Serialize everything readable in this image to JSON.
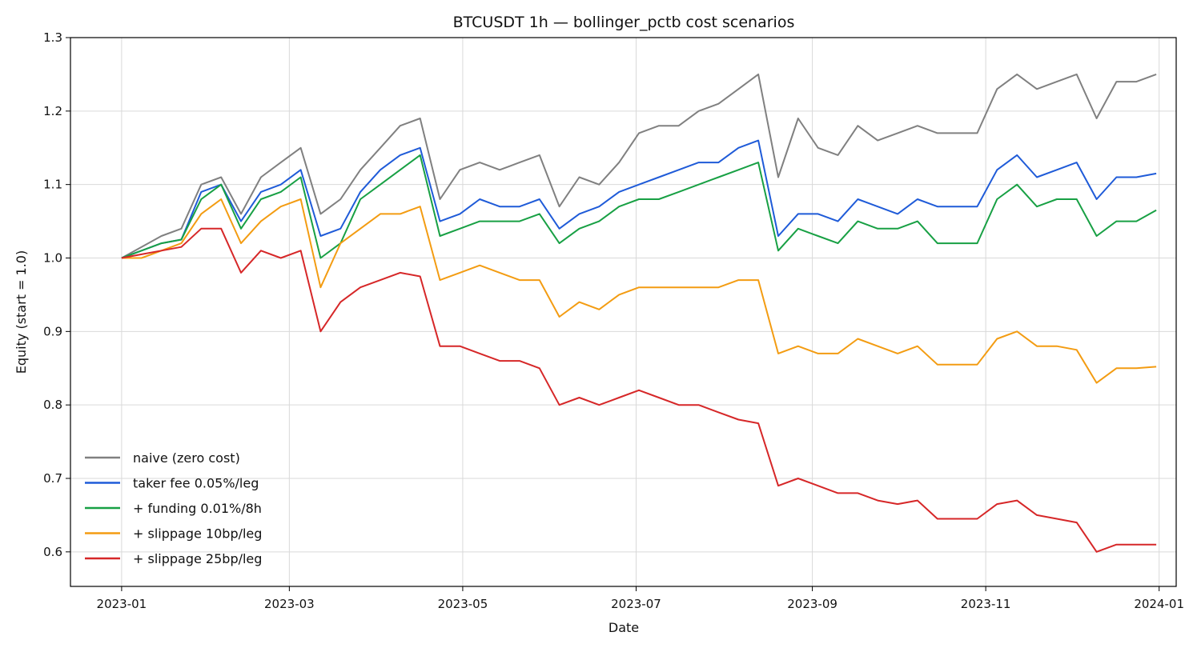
{
  "chart_data": {
    "type": "line",
    "title": "BTCUSDT 1h — bollinger_pctb cost scenarios",
    "xlabel": "Date",
    "ylabel": "Equity (start = 1.0)",
    "x_ticks": [
      "2023-01",
      "2023-03",
      "2023-05",
      "2023-07",
      "2023-09",
      "2023-11",
      "2024-01"
    ],
    "y_ticks": [
      "0.6",
      "0.7",
      "0.8",
      "0.9",
      "1.0",
      "1.1",
      "1.2",
      "1.3"
    ],
    "xlim": [
      "2022-12-14",
      "2024-01-07"
    ],
    "ylim": [
      0.553,
      1.3
    ],
    "grid": true,
    "legend_position": "lower-left",
    "x": [
      "2023-01-01",
      "2023-01-08",
      "2023-01-15",
      "2023-01-22",
      "2023-01-29",
      "2023-02-05",
      "2023-02-12",
      "2023-02-19",
      "2023-02-26",
      "2023-03-05",
      "2023-03-12",
      "2023-03-19",
      "2023-03-26",
      "2023-04-02",
      "2023-04-09",
      "2023-04-16",
      "2023-04-23",
      "2023-04-30",
      "2023-05-07",
      "2023-05-14",
      "2023-05-21",
      "2023-05-28",
      "2023-06-04",
      "2023-06-11",
      "2023-06-18",
      "2023-06-25",
      "2023-07-02",
      "2023-07-09",
      "2023-07-16",
      "2023-07-23",
      "2023-07-30",
      "2023-08-06",
      "2023-08-13",
      "2023-08-20",
      "2023-08-27",
      "2023-09-03",
      "2023-09-10",
      "2023-09-17",
      "2023-09-24",
      "2023-10-01",
      "2023-10-08",
      "2023-10-15",
      "2023-10-22",
      "2023-10-29",
      "2023-11-05",
      "2023-11-12",
      "2023-11-19",
      "2023-11-26",
      "2023-12-03",
      "2023-12-10",
      "2023-12-17",
      "2023-12-24",
      "2023-12-31"
    ],
    "series": [
      {
        "name": "naive (zero cost)",
        "color": "#808080",
        "values": [
          1.0,
          1.015,
          1.03,
          1.04,
          1.1,
          1.11,
          1.06,
          1.11,
          1.13,
          1.15,
          1.06,
          1.08,
          1.12,
          1.15,
          1.18,
          1.19,
          1.08,
          1.12,
          1.13,
          1.12,
          1.13,
          1.14,
          1.07,
          1.11,
          1.1,
          1.13,
          1.17,
          1.18,
          1.18,
          1.2,
          1.21,
          1.23,
          1.25,
          1.11,
          1.19,
          1.15,
          1.14,
          1.18,
          1.16,
          1.17,
          1.18,
          1.17,
          1.17,
          1.17,
          1.23,
          1.25,
          1.23,
          1.24,
          1.25,
          1.19,
          1.24,
          1.24,
          1.25
        ]
      },
      {
        "name": "taker fee 0.05%/leg",
        "color": "#1f5bd8",
        "values": [
          1.0,
          1.01,
          1.02,
          1.025,
          1.09,
          1.1,
          1.05,
          1.09,
          1.1,
          1.12,
          1.03,
          1.04,
          1.09,
          1.12,
          1.14,
          1.15,
          1.05,
          1.06,
          1.08,
          1.07,
          1.07,
          1.08,
          1.04,
          1.06,
          1.07,
          1.09,
          1.1,
          1.11,
          1.12,
          1.13,
          1.13,
          1.15,
          1.16,
          1.03,
          1.06,
          1.06,
          1.05,
          1.08,
          1.07,
          1.06,
          1.08,
          1.07,
          1.07,
          1.07,
          1.12,
          1.14,
          1.11,
          1.12,
          1.13,
          1.08,
          1.11,
          1.11,
          1.115
        ]
      },
      {
        "name": "+ funding 0.01%/8h",
        "color": "#18a044",
        "values": [
          1.0,
          1.01,
          1.02,
          1.025,
          1.08,
          1.1,
          1.04,
          1.08,
          1.09,
          1.11,
          1.0,
          1.02,
          1.08,
          1.1,
          1.12,
          1.14,
          1.03,
          1.04,
          1.05,
          1.05,
          1.05,
          1.06,
          1.02,
          1.04,
          1.05,
          1.07,
          1.08,
          1.08,
          1.09,
          1.1,
          1.11,
          1.12,
          1.13,
          1.01,
          1.04,
          1.03,
          1.02,
          1.05,
          1.04,
          1.04,
          1.05,
          1.02,
          1.02,
          1.02,
          1.08,
          1.1,
          1.07,
          1.08,
          1.08,
          1.03,
          1.05,
          1.05,
          1.065
        ]
      },
      {
        "name": "+ slippage 10bp/leg",
        "color": "#f39c12",
        "values": [
          1.0,
          1.0,
          1.01,
          1.02,
          1.06,
          1.08,
          1.02,
          1.05,
          1.07,
          1.08,
          0.96,
          1.02,
          1.04,
          1.06,
          1.06,
          1.07,
          0.97,
          0.98,
          0.99,
          0.98,
          0.97,
          0.97,
          0.92,
          0.94,
          0.93,
          0.95,
          0.96,
          0.96,
          0.96,
          0.96,
          0.96,
          0.97,
          0.97,
          0.87,
          0.88,
          0.87,
          0.87,
          0.89,
          0.88,
          0.87,
          0.88,
          0.855,
          0.855,
          0.855,
          0.89,
          0.9,
          0.88,
          0.88,
          0.875,
          0.83,
          0.85,
          0.85,
          0.852
        ]
      },
      {
        "name": "+ slippage 25bp/leg",
        "color": "#d62728",
        "values": [
          1.0,
          1.005,
          1.01,
          1.015,
          1.04,
          1.04,
          0.98,
          1.01,
          1.0,
          1.01,
          0.9,
          0.94,
          0.96,
          0.97,
          0.98,
          0.975,
          0.88,
          0.88,
          0.87,
          0.86,
          0.86,
          0.85,
          0.8,
          0.81,
          0.8,
          0.81,
          0.82,
          0.81,
          0.8,
          0.8,
          0.79,
          0.78,
          0.775,
          0.69,
          0.7,
          0.69,
          0.68,
          0.68,
          0.67,
          0.665,
          0.67,
          0.645,
          0.645,
          0.645,
          0.665,
          0.67,
          0.65,
          0.645,
          0.64,
          0.6,
          0.61,
          0.61,
          0.61
        ]
      }
    ]
  }
}
